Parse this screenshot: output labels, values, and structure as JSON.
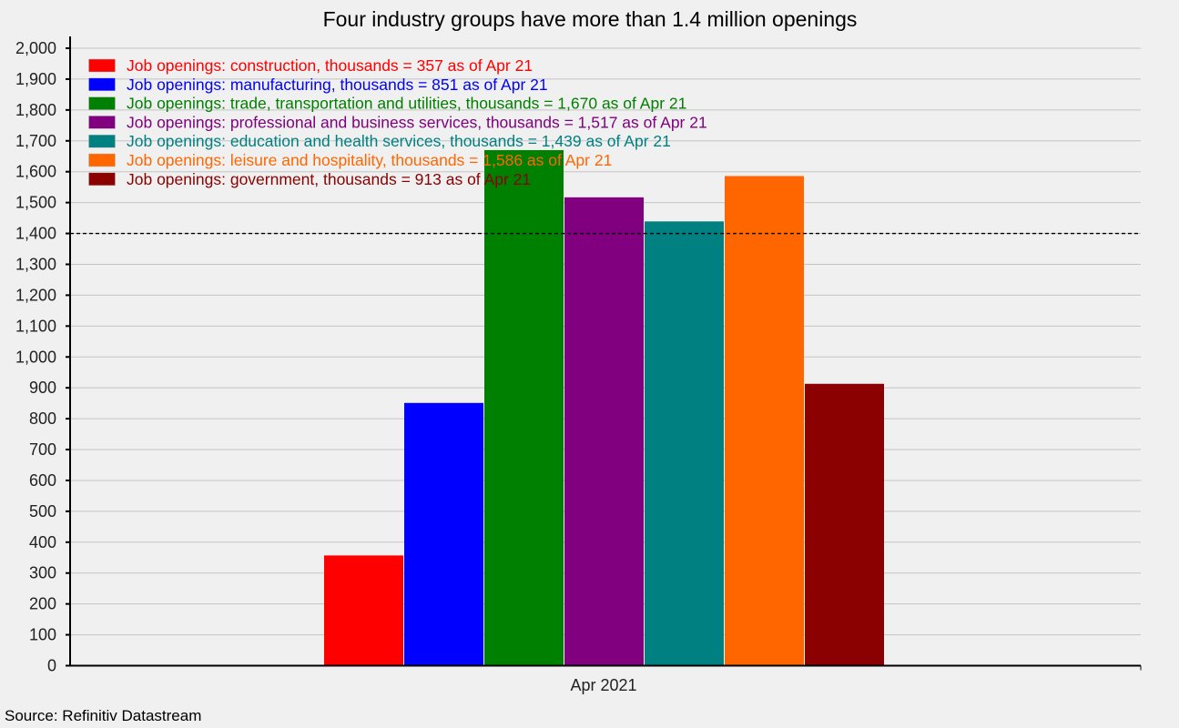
{
  "chart_data": {
    "type": "bar",
    "title": "Four industry groups have more than 1.4 million openings",
    "categories": [
      "Apr 2021"
    ],
    "xlabel": "",
    "ylabel": "",
    "ylim": [
      0,
      2000
    ],
    "ytick_step": 100,
    "grid": true,
    "legend_placement": "top-left",
    "reference_line": {
      "value": 1400,
      "style": "dashed",
      "color": "#000000"
    },
    "series": [
      {
        "name": "Job openings: construction, thousands = 357 as of Apr 21",
        "values": [
          357
        ],
        "color": "#ff0000"
      },
      {
        "name": "Job openings: manufacturing, thousands = 851 as of Apr 21",
        "values": [
          851
        ],
        "color": "#0000ff"
      },
      {
        "name": "Job openings: trade, transportation and utilities, thousands = 1,670 as of Apr 21",
        "values": [
          1670
        ],
        "color": "#008000"
      },
      {
        "name": "Job openings: professional and business services, thousands = 1,517 as of Apr 21",
        "values": [
          1517
        ],
        "color": "#800080"
      },
      {
        "name": "Job openings: education and health services, thousands = 1,439 as of Apr 21",
        "values": [
          1439
        ],
        "color": "#008080"
      },
      {
        "name": "Job openings: leisure and hospitality, thousands = 1,586 as of Apr 21",
        "values": [
          1586
        ],
        "color": "#ff6600"
      },
      {
        "name": "Job openings: government, thousands = 913 as of Apr 21",
        "values": [
          913
        ],
        "color": "#8b0000"
      }
    ],
    "source": "Source: Refinitiv Datastream"
  }
}
